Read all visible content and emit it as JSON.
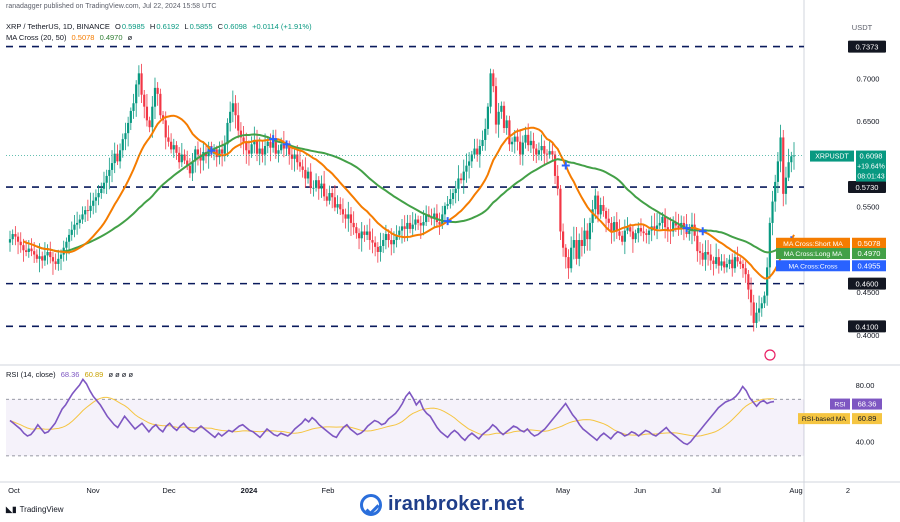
{
  "header": {
    "publisher": "ranadagger published on TradingView.com, Jul 22, 2024 15:58 UTC",
    "symbol": "XRP / TetherUS, 1D, BINANCE",
    "ohlc": {
      "o_label": "O",
      "o": "0.5985",
      "h_label": "H",
      "h": "0.6192",
      "l_label": "L",
      "l": "0.5855",
      "c_label": "C",
      "c": "0.6098",
      "change": "+0.0114 (+1.91%)"
    },
    "ma_indicator": {
      "label": "MA Cross (20, 50)",
      "short": "0.5078",
      "long": "0.4970",
      "extra": "ø"
    },
    "rsi_indicator": {
      "label": "RSI (14, close)",
      "rsi": "68.36",
      "based": "60.89",
      "extras": "ø ø ø ø"
    }
  },
  "colors": {
    "up": "#089981",
    "down": "#f23645",
    "ma_short": "#f57c00",
    "ma_long": "#43a047",
    "rsi": "#7e57c2",
    "rsi_ma": "#f5c542",
    "level_line": "#0a1a5c",
    "cross_marker": "#2962ff"
  },
  "chart_data": [
    {
      "type": "candlestick",
      "symbol": "XRPUSDT",
      "currency_label": "USDT",
      "ylim": [
        0.38,
        0.745
      ],
      "y_ticks": [
        "0.7000",
        "0.6500",
        "0.5500",
        "0.4500",
        "0.4000"
      ],
      "x_ticks": [
        "Oct",
        "Nov",
        "Dec",
        "2024",
        "Feb",
        "May",
        "Jun",
        "Jul",
        "Aug",
        "2"
      ],
      "horizontal_levels": [
        {
          "label": "0.7373",
          "value": 0.7373
        },
        {
          "label": "0.5730",
          "value": 0.573
        },
        {
          "label": "0.4600",
          "value": 0.46
        },
        {
          "label": "0.4100",
          "value": 0.41
        }
      ],
      "last_price": {
        "symbol": "XRPUSDT",
        "price": "0.6098",
        "change": "+19.64%",
        "countdown": "08:01:43",
        "value": 0.6098
      },
      "ma_tags": [
        {
          "label": "MA Cross:Short MA",
          "value": "0.5078",
          "kind": "short"
        },
        {
          "label": "MA Cross:Long MA",
          "value": "0.4970",
          "kind": "long"
        },
        {
          "label": "MA Cross:Cross",
          "value": "0.4955",
          "kind": "cross"
        }
      ],
      "close_series": [
        0.512,
        0.518,
        0.515,
        0.509,
        0.505,
        0.499,
        0.497,
        0.501,
        0.498,
        0.494,
        0.489,
        0.492,
        0.487,
        0.493,
        0.497,
        0.491,
        0.486,
        0.483,
        0.489,
        0.494,
        0.502,
        0.509,
        0.517,
        0.523,
        0.529,
        0.531,
        0.535,
        0.541,
        0.546,
        0.545,
        0.551,
        0.557,
        0.561,
        0.566,
        0.571,
        0.578,
        0.586,
        0.593,
        0.601,
        0.612,
        0.603,
        0.616,
        0.629,
        0.636,
        0.648,
        0.662,
        0.671,
        0.693,
        0.706,
        0.681,
        0.667,
        0.651,
        0.643,
        0.667,
        0.689,
        0.682,
        0.657,
        0.651,
        0.631,
        0.626,
        0.617,
        0.622,
        0.613,
        0.602,
        0.611,
        0.604,
        0.598,
        0.589,
        0.603,
        0.617,
        0.611,
        0.604,
        0.614,
        0.609,
        0.621,
        0.612,
        0.617,
        0.608,
        0.617,
        0.612,
        0.623,
        0.648,
        0.661,
        0.671,
        0.657,
        0.639,
        0.631,
        0.626,
        0.616,
        0.612,
        0.623,
        0.628,
        0.612,
        0.618,
        0.611,
        0.621,
        0.626,
        0.619,
        0.628,
        0.612,
        0.616,
        0.623,
        0.618,
        0.621,
        0.611,
        0.606,
        0.611,
        0.602,
        0.597,
        0.593,
        0.583,
        0.591,
        0.572,
        0.572,
        0.581,
        0.571,
        0.577,
        0.562,
        0.557,
        0.566,
        0.561,
        0.549,
        0.553,
        0.547,
        0.541,
        0.536,
        0.541,
        0.531,
        0.526,
        0.519,
        0.513,
        0.521,
        0.517,
        0.521,
        0.511,
        0.508,
        0.503,
        0.497,
        0.504,
        0.511,
        0.518,
        0.511,
        0.506,
        0.511,
        0.517,
        0.522,
        0.527,
        0.524,
        0.531,
        0.524,
        0.529,
        0.535,
        0.531,
        0.528,
        0.532,
        0.541,
        0.538,
        0.536,
        0.542,
        0.532,
        0.529,
        0.541,
        0.551,
        0.553,
        0.559,
        0.566,
        0.571,
        0.583,
        0.581,
        0.591,
        0.598,
        0.603,
        0.611,
        0.618,
        0.611,
        0.621,
        0.628,
        0.641,
        0.667,
        0.706,
        0.691,
        0.646,
        0.661,
        0.668,
        0.642,
        0.651,
        0.623,
        0.626,
        0.632,
        0.626,
        0.611,
        0.625,
        0.634,
        0.622,
        0.627,
        0.618,
        0.611,
        0.616,
        0.621,
        0.612,
        0.611,
        0.615,
        0.611,
        0.586,
        0.571,
        0.521,
        0.502,
        0.491,
        0.478,
        0.502,
        0.511,
        0.489,
        0.511,
        0.504,
        0.522,
        0.512,
        0.531,
        0.547,
        0.563,
        0.541,
        0.552,
        0.545,
        0.536,
        0.531,
        0.522,
        0.532,
        0.521,
        0.516,
        0.509,
        0.522,
        0.526,
        0.521,
        0.512,
        0.519,
        0.525,
        0.521,
        0.519,
        0.517,
        0.522,
        0.527,
        0.524,
        0.528,
        0.531,
        0.538,
        0.526,
        0.522,
        0.521,
        0.532,
        0.528,
        0.524,
        0.531,
        0.526,
        0.518,
        0.522,
        0.529,
        0.516,
        0.498,
        0.496,
        0.488,
        0.497,
        0.494,
        0.487,
        0.483,
        0.491,
        0.481,
        0.486,
        0.479,
        0.483,
        0.488,
        0.478,
        0.491,
        0.486,
        0.483,
        0.478,
        0.471,
        0.453,
        0.438,
        0.414,
        0.426,
        0.431,
        0.437,
        0.446,
        0.479,
        0.531,
        0.556,
        0.579,
        0.603,
        0.631,
        0.565,
        0.584,
        0.602,
        0.609,
        0.6098
      ],
      "rsi_series": [
        55,
        53,
        51,
        49,
        46,
        44,
        45,
        48,
        52,
        49,
        46,
        47,
        50,
        53,
        58,
        63,
        66,
        70,
        74,
        77,
        80,
        84,
        81,
        76,
        72,
        69,
        66,
        62,
        58,
        55,
        52,
        50,
        54,
        58,
        55,
        52,
        49,
        51,
        53,
        50,
        47,
        50,
        52,
        49,
        47,
        51,
        53,
        50,
        48,
        51,
        53,
        50,
        48,
        47,
        49,
        51,
        49,
        47,
        45,
        43,
        46,
        44,
        46,
        48,
        47,
        49,
        51,
        52,
        50,
        48,
        47,
        45,
        43,
        46,
        49,
        47,
        45,
        44,
        46,
        45,
        44,
        46,
        49,
        51,
        53,
        56,
        54,
        57,
        55,
        52,
        50,
        48,
        46,
        44,
        43,
        47,
        50,
        52,
        49,
        47,
        45,
        46,
        48,
        51,
        53,
        55,
        54,
        52,
        53,
        56,
        58,
        60,
        63,
        67,
        72,
        75,
        71,
        66,
        69,
        63,
        60,
        58,
        54,
        50,
        47,
        45,
        43,
        46,
        48,
        46,
        43,
        41,
        44,
        46,
        44,
        42,
        45,
        47,
        49,
        52,
        50,
        47,
        45,
        47,
        49,
        51,
        50,
        48,
        47,
        49,
        46,
        44,
        45,
        47,
        49,
        52,
        55,
        58,
        61,
        64,
        67,
        63,
        59,
        56,
        52,
        49,
        47,
        45,
        43,
        41,
        44,
        46,
        44,
        42,
        45,
        47,
        46,
        44,
        45,
        47,
        46,
        44,
        46,
        48,
        47,
        45,
        44,
        46,
        48,
        50,
        47,
        45,
        43,
        41,
        39,
        38,
        40,
        43,
        46,
        49,
        52,
        55,
        58,
        61,
        64,
        66,
        68,
        69,
        70,
        72,
        75,
        79,
        76,
        71,
        68,
        65,
        68,
        69,
        67,
        68,
        68.36
      ],
      "rsi_ylim": [
        20,
        85
      ],
      "rsi_ticks": [
        "80.00",
        "40.00"
      ],
      "rsi_band": [
        30,
        70
      ],
      "rsi_tags": [
        {
          "label": "RSI",
          "value": "68.36",
          "kind": "rsi"
        },
        {
          "label": "RSI-based MA",
          "value": "60.89",
          "kind": "rsi_ma"
        }
      ]
    }
  ],
  "footer": {
    "brand": "TradingView",
    "watermark": "iranbroker.net"
  }
}
